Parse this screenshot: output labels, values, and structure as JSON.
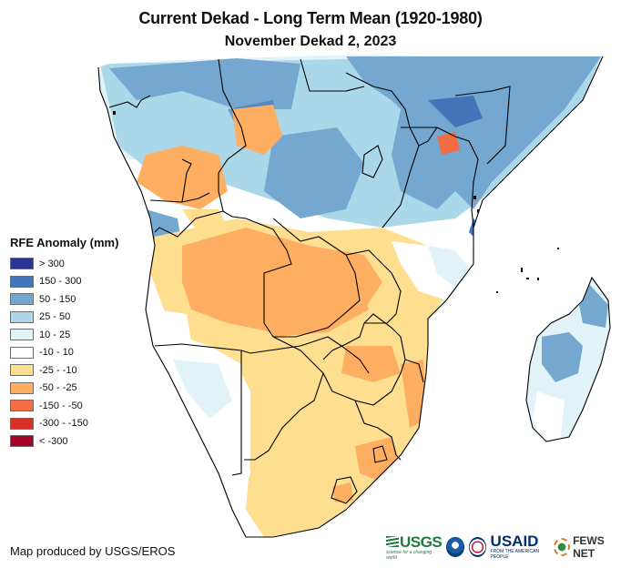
{
  "title": "Current Dekad - Long Term Mean (1920-1980)",
  "subtitle": "November Dekad 2, 2023",
  "legend": {
    "title": "RFE Anomaly (mm)",
    "items": [
      {
        "label": "> 300",
        "color": "#2b3493"
      },
      {
        "label": "150 - 300",
        "color": "#4474b8"
      },
      {
        "label": "50 - 150",
        "color": "#74a8d0"
      },
      {
        "label": "25 - 50",
        "color": "#abd8e8"
      },
      {
        "label": "10 - 25",
        "color": "#e1f2f8"
      },
      {
        "label": "-10 - 10",
        "color": "#ffffff"
      },
      {
        "label": "-25 - -10",
        "color": "#fedf90"
      },
      {
        "label": "-50 - -25",
        "color": "#fdae60"
      },
      {
        "label": "-150 - -50",
        "color": "#f46c43"
      },
      {
        "label": "-300 - -150",
        "color": "#d73027"
      },
      {
        "label": "< -300",
        "color": "#a50026"
      }
    ]
  },
  "credit": "Map produced by USGS/EROS",
  "logos": {
    "usgs": "USGS",
    "usgs_tagline": "science for a changing world",
    "noaa": "NOAA",
    "usaid": "USAID",
    "usaid_tagline": "FROM THE AMERICAN PEOPLE",
    "fews": "FEWS NET"
  },
  "map": {
    "region": "Southern and Eastern Africa",
    "features": [
      {
        "name": "West-central Africa (Congo Basin north)",
        "anomaly_class": "50 - 150"
      },
      {
        "name": "East Africa (Kenya/Somalia/Ethiopia)",
        "anomaly_class": "50 - 150"
      },
      {
        "name": "Angola / Zambia",
        "anomaly_class": "-50 - -25"
      },
      {
        "name": "Southern Africa (South Africa/Botswana)",
        "anomaly_class": "-25 - -10"
      },
      {
        "name": "Namibia coast",
        "anomaly_class": "-10 - 10"
      },
      {
        "name": "Madagascar",
        "anomaly_class": "25 - 50"
      }
    ]
  }
}
